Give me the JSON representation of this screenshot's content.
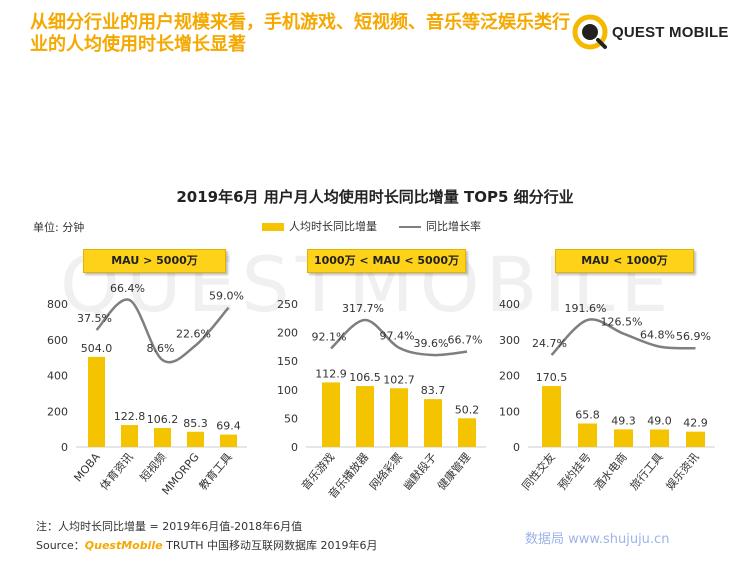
{
  "headline": "从细分行业的用户规模来看，手机游戏、短视频、音乐等泛娱乐类行业的人均使用时长增长显著",
  "logo": {
    "icon": "quest-mobile-logo-icon",
    "text": "QUEST MOBILE"
  },
  "watermark_bg": "QUESTMOBILE",
  "chart_data": {
    "type": "bar",
    "title": "2019年6月 用户月人均使用时长同比增量 TOP5 细分行业",
    "unit": "单位: 分钟",
    "legend": {
      "bar": "人均时长同比增量",
      "line": "同比增长率",
      "placement": "top-center"
    },
    "colors": {
      "bar": "#f5c400",
      "line": "#7f7f7f",
      "box": "#ffd21a"
    },
    "groups": [
      {
        "label": "MAU > 5000万",
        "ylim": [
          0,
          800
        ],
        "ticks": [
          0,
          200,
          400,
          600,
          800
        ],
        "categories": [
          "MOBA",
          "体育资讯",
          "短视频",
          "MMORPG",
          "教育工具"
        ],
        "values": [
          504.0,
          122.8,
          106.2,
          85.3,
          69.4
        ],
        "value_labels": [
          "504.0",
          "122.8",
          "106.2",
          "85.3",
          "69.4"
        ],
        "rates": [
          37.5,
          66.4,
          8.6,
          22.6,
          59.0
        ],
        "rate_labels": [
          "37.5%",
          "66.4%",
          "8.6%",
          "22.6%",
          "59.0%"
        ]
      },
      {
        "label": "1000万 < MAU < 5000万",
        "ylim": [
          0,
          250
        ],
        "ticks": [
          0,
          50,
          100,
          150,
          200,
          250
        ],
        "categories": [
          "音乐游戏",
          "音乐播放器",
          "网络彩票",
          "幽默段子",
          "健康管理"
        ],
        "values": [
          112.9,
          106.5,
          102.7,
          83.7,
          50.2
        ],
        "value_labels": [
          "112.9",
          "106.5",
          "102.7",
          "83.7",
          "50.2"
        ],
        "rates": [
          92.1,
          317.7,
          97.4,
          39.6,
          66.7
        ],
        "rate_labels": [
          "92.1%",
          "317.7%",
          "97.4%",
          "39.6%",
          "66.7%"
        ]
      },
      {
        "label": "MAU < 1000万",
        "ylim": [
          0,
          400
        ],
        "ticks": [
          0,
          100,
          200,
          300,
          400
        ],
        "categories": [
          "同性交友",
          "预约挂号",
          "酒水电商",
          "旅行工具",
          "娱乐资讯"
        ],
        "values": [
          170.5,
          65.8,
          49.3,
          49.0,
          42.9
        ],
        "value_labels": [
          "170.5",
          "65.8",
          "49.3",
          "49.0",
          "42.9"
        ],
        "rates": [
          24.7,
          191.6,
          126.5,
          64.8,
          56.9
        ],
        "rate_labels": [
          "24.7%",
          "191.6%",
          "126.5%",
          "64.8%",
          "56.9%"
        ]
      }
    ]
  },
  "footer": {
    "note": "注：人均时长同比增量 = 2019年6月值-2018年6月值",
    "source_prefix": "Source：",
    "source_brand": "QuestMobile",
    "source_rest": " TRUTH 中国移动互联网数据库 2019年6月"
  },
  "site_watermark": "数据局 www.shujuju.cn"
}
